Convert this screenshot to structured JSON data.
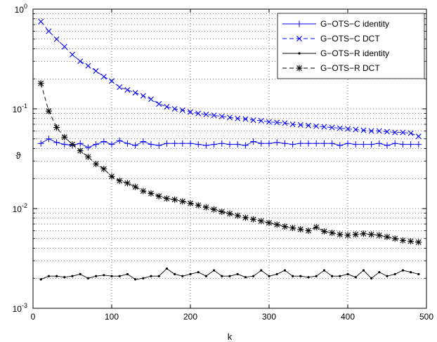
{
  "chart_data": {
    "type": "line",
    "xlabel": "k",
    "ylabel": "ϑ",
    "xlim": [
      0,
      500
    ],
    "ylim": [
      0.001,
      1
    ],
    "yscale": "log",
    "grid": true,
    "legend_position": "top-right",
    "x_ticks": [
      "0",
      "100",
      "200",
      "300",
      "400",
      "500"
    ],
    "y_ticks": [
      {
        "base": "10",
        "exp": "-3"
      },
      {
        "base": "10",
        "exp": "-2"
      },
      {
        "base": "10",
        "exp": "-1"
      },
      {
        "base": "10",
        "exp": "0"
      }
    ],
    "x": [
      10,
      20,
      30,
      40,
      50,
      60,
      70,
      80,
      90,
      100,
      110,
      120,
      130,
      140,
      150,
      160,
      170,
      180,
      190,
      200,
      210,
      220,
      230,
      240,
      250,
      260,
      270,
      280,
      290,
      300,
      310,
      320,
      330,
      340,
      350,
      360,
      370,
      380,
      390,
      400,
      410,
      420,
      430,
      440,
      450,
      460,
      470,
      480,
      490
    ],
    "series": [
      {
        "name": "G−OTS−C identity",
        "color": "#0000ff",
        "line": "solid",
        "marker": "plus",
        "values": [
          0.045,
          0.05,
          0.046,
          0.044,
          0.043,
          0.045,
          0.041,
          0.044,
          0.047,
          0.044,
          0.048,
          0.045,
          0.043,
          0.047,
          0.044,
          0.043,
          0.045,
          0.045,
          0.045,
          0.045,
          0.044,
          0.043,
          0.044,
          0.045,
          0.044,
          0.044,
          0.043,
          0.047,
          0.045,
          0.045,
          0.046,
          0.045,
          0.044,
          0.045,
          0.045,
          0.045,
          0.045,
          0.045,
          0.043,
          0.045,
          0.044,
          0.044,
          0.044,
          0.045,
          0.043,
          0.045,
          0.044,
          0.044,
          0.044
        ]
      },
      {
        "name": "G−OTS−C DCT",
        "color": "#0000ff",
        "line": "dashed",
        "marker": "x",
        "values": [
          0.75,
          0.6,
          0.5,
          0.42,
          0.35,
          0.3,
          0.27,
          0.24,
          0.21,
          0.19,
          0.165,
          0.155,
          0.145,
          0.135,
          0.125,
          0.112,
          0.105,
          0.1,
          0.097,
          0.093,
          0.09,
          0.088,
          0.086,
          0.084,
          0.082,
          0.08,
          0.079,
          0.077,
          0.076,
          0.074,
          0.073,
          0.072,
          0.07,
          0.069,
          0.068,
          0.067,
          0.066,
          0.065,
          0.064,
          0.063,
          0.062,
          0.061,
          0.06,
          0.06,
          0.059,
          0.058,
          0.058,
          0.057,
          0.053
        ]
      },
      {
        "name": "G−OTS−R identity",
        "color": "#000000",
        "line": "solid",
        "marker": "dot",
        "values": [
          0.00195,
          0.0021,
          0.0021,
          0.00205,
          0.0021,
          0.0022,
          0.002,
          0.0021,
          0.00215,
          0.0021,
          0.0021,
          0.0022,
          0.00195,
          0.002,
          0.0021,
          0.0021,
          0.0025,
          0.0022,
          0.0021,
          0.0022,
          0.0023,
          0.0021,
          0.0024,
          0.0021,
          0.0021,
          0.0022,
          0.00205,
          0.0021,
          0.0024,
          0.0021,
          0.0022,
          0.0024,
          0.0021,
          0.0021,
          0.00205,
          0.0021,
          0.0024,
          0.0021,
          0.0021,
          0.0022,
          0.00205,
          0.0024,
          0.002,
          0.0023,
          0.0021,
          0.0022,
          0.0024,
          0.0023,
          0.0022
        ]
      },
      {
        "name": "G−OTS−R DCT",
        "color": "#000000",
        "line": "dashed",
        "marker": "star",
        "values": [
          0.18,
          0.095,
          0.065,
          0.052,
          0.044,
          0.038,
          0.033,
          0.028,
          0.025,
          0.021,
          0.019,
          0.018,
          0.0165,
          0.015,
          0.0142,
          0.0133,
          0.0126,
          0.0123,
          0.0118,
          0.0113,
          0.0108,
          0.0103,
          0.0098,
          0.0093,
          0.0089,
          0.0085,
          0.0081,
          0.0078,
          0.0075,
          0.0072,
          0.0069,
          0.0066,
          0.0064,
          0.0062,
          0.006,
          0.0065,
          0.0059,
          0.0057,
          0.0055,
          0.0054,
          0.0055,
          0.0056,
          0.0055,
          0.0054,
          0.0052,
          0.005,
          0.0048,
          0.0047,
          0.0046
        ]
      }
    ]
  }
}
